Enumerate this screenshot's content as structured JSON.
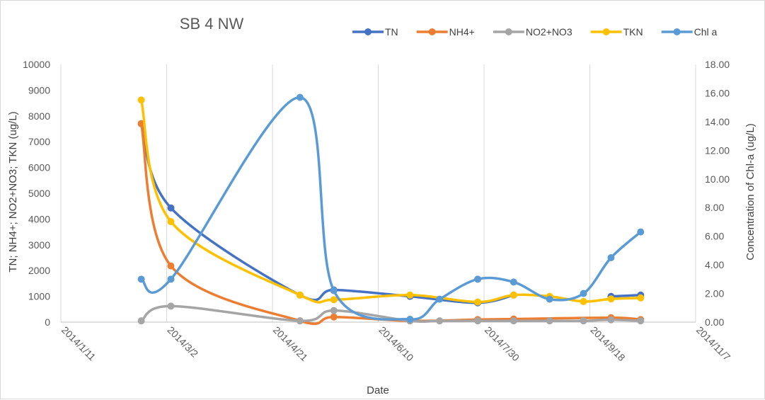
{
  "chart_data": {
    "type": "line",
    "title": "SB 4 NW",
    "xlabel": "Date",
    "ylabel": "TN; NH4+; NO2+NO3; TKN (ug/L)",
    "y2label": "Concentration of Chl-a (ug/L)",
    "xlim": [
      "2014-01-11",
      "2014-11-07"
    ],
    "xticks": [
      "2014/1/11",
      "2014/3/2",
      "2014/4/21",
      "2014/6/10",
      "2014/7/30",
      "2014/9/18",
      "2014/11/7"
    ],
    "ylim": [
      0,
      10000
    ],
    "yticks": [
      "0",
      "1000",
      "2000",
      "3000",
      "4000",
      "5000",
      "6000",
      "7000",
      "8000",
      "9000",
      "10000"
    ],
    "y2lim": [
      0,
      18
    ],
    "y2ticks": [
      "0.00",
      "2.00",
      "4.00",
      "6.00",
      "8.00",
      "10.00",
      "12.00",
      "14.00",
      "16.00",
      "18.00"
    ],
    "grid": "vertical",
    "legend_position": "top",
    "smooth": true,
    "series": [
      {
        "name": "TN",
        "axis": "left",
        "color": "#4472C4",
        "x": [
          "2014-02-18",
          "2014-03-04",
          "2014-05-04",
          "2014-05-20",
          "2014-06-25",
          "2014-07-27",
          "2014-08-13"
        ],
        "y": [
          7700,
          4430,
          1050,
          1250,
          1000,
          750,
          1050
        ]
      },
      {
        "name": "TN",
        "axis": "left",
        "color": "#4472C4",
        "x": [
          "2014-09-28",
          "2014-10-12"
        ],
        "y": [
          1000,
          1050
        ]
      },
      {
        "name": "NH4+",
        "axis": "left",
        "color": "#ED7D31",
        "x": [
          "2014-02-18",
          "2014-03-04",
          "2014-05-04",
          "2014-05-20",
          "2014-06-25",
          "2014-07-27",
          "2014-08-13",
          "2014-09-28",
          "2014-10-12"
        ],
        "y": [
          7700,
          2180,
          50,
          200,
          50,
          100,
          120,
          170,
          100
        ]
      },
      {
        "name": "NO2+NO3",
        "axis": "left",
        "color": "#A5A5A5",
        "x": [
          "2014-02-18",
          "2014-03-04",
          "2014-05-04",
          "2014-05-20",
          "2014-06-25",
          "2014-07-09",
          "2014-07-27",
          "2014-08-13",
          "2014-08-30",
          "2014-09-15",
          "2014-09-28",
          "2014-10-12"
        ],
        "y": [
          50,
          620,
          50,
          450,
          50,
          50,
          50,
          50,
          50,
          50,
          90,
          50
        ]
      },
      {
        "name": "TKN",
        "axis": "left",
        "color": "#FFC000",
        "x": [
          "2014-02-18",
          "2014-03-04",
          "2014-05-04",
          "2014-05-20",
          "2014-06-25",
          "2014-07-27",
          "2014-08-13",
          "2014-08-30",
          "2014-09-15",
          "2014-09-28",
          "2014-10-12"
        ],
        "y": [
          8620,
          3900,
          1050,
          870,
          1050,
          780,
          1050,
          1000,
          800,
          900,
          940
        ]
      },
      {
        "name": "Chl a",
        "axis": "right",
        "color": "#5B9BD5",
        "x": [
          "2014-02-18",
          "2014-03-04",
          "2014-05-04",
          "2014-05-20",
          "2014-06-25",
          "2014-07-09",
          "2014-07-27",
          "2014-08-13",
          "2014-08-30",
          "2014-09-15",
          "2014-09-28",
          "2014-10-12"
        ],
        "y": [
          3.0,
          3.0,
          15.7,
          2.2,
          0.2,
          1.6,
          3.0,
          2.8,
          1.6,
          2.0,
          4.5,
          6.3
        ]
      }
    ]
  }
}
